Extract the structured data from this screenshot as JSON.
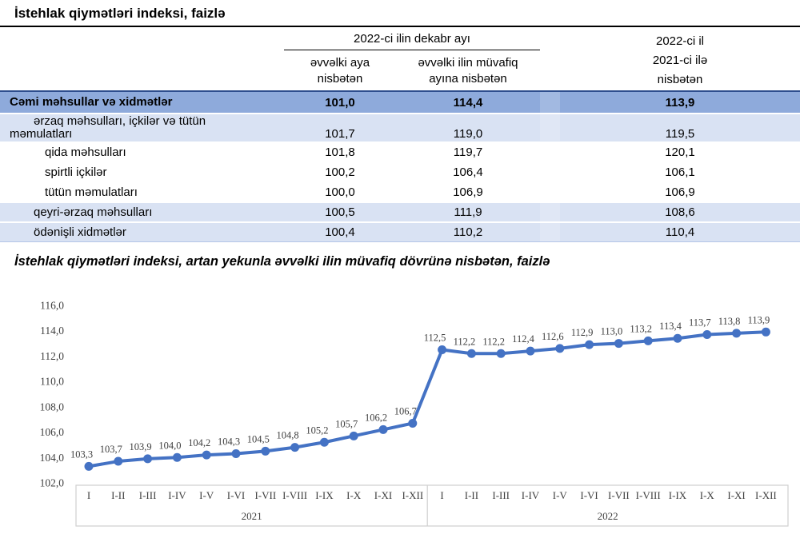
{
  "page": {
    "title": "İstehlak qiymətləri indeksi, faizlə"
  },
  "colors": {
    "table_header_fill": "#8EAADB",
    "table_band_fill": "#D9E2F3",
    "table_top_border": "#2E4E8E",
    "chart_line": "#4472C4",
    "axis_text": "#3f3f3f",
    "axis_box_border": "#cfcfcf"
  },
  "table": {
    "header": {
      "group_top": "2022-ci ilin dekabr ayı",
      "col1_lines": [
        "əvvəlki aya",
        "nisbətən"
      ],
      "col2_lines": [
        "əvvəlki ilin müvafiq",
        "ayına nisbətən"
      ],
      "col3_lines": [
        "2022-ci il",
        "2021-ci ilə",
        "nisbətən"
      ]
    },
    "rows": [
      {
        "lines": [
          "Cəmi məhsullar və xidmətlər"
        ],
        "indents": [
          12
        ],
        "values": [
          "101,0",
          "114,4",
          "113,9"
        ],
        "style": "total"
      },
      {
        "lines": [
          "ərzaq məhsulları, içkilər və tütün",
          "məmulatları"
        ],
        "indents": [
          42,
          12
        ],
        "values": [
          "101,7",
          "119,0",
          "119,5"
        ],
        "style": "band tall"
      },
      {
        "lines": [
          "qida məhsulları"
        ],
        "indents": [
          56
        ],
        "values": [
          "101,8",
          "119,7",
          "120,1"
        ],
        "style": "plain"
      },
      {
        "lines": [
          "spirtli içkilər"
        ],
        "indents": [
          56
        ],
        "values": [
          "100,2",
          "106,4",
          "106,1"
        ],
        "style": "plain"
      },
      {
        "lines": [
          "tütün məmulatları"
        ],
        "indents": [
          56
        ],
        "values": [
          "100,0",
          "106,9",
          "106,9"
        ],
        "style": "plain"
      },
      {
        "lines": [
          "qeyri-ərzaq məhsulları"
        ],
        "indents": [
          42
        ],
        "values": [
          "100,5",
          "111,9",
          "108,6"
        ],
        "style": "band"
      },
      {
        "lines": [
          "ödənişli xidmətlər"
        ],
        "indents": [
          42
        ],
        "values": [
          "100,4",
          "110,2",
          "110,4"
        ],
        "style": "band last"
      }
    ]
  },
  "chart_data": {
    "type": "line",
    "title": "İstehlak qiymətləri indeksi, artan yekunla əvvəlki ilin müvafiq dövrünə nisbətən, faizlə",
    "categories": [
      "I",
      "I-II",
      "I-III",
      "I-IV",
      "I-V",
      "I-VI",
      "I-VII",
      "I-VIII",
      "I-IX",
      "I-X",
      "I-XI",
      "I-XII",
      "I",
      "I-II",
      "I-III",
      "I-IV",
      "I-V",
      "I-VI",
      "I-VII",
      "I-VIII",
      "I-IX",
      "I-X",
      "I-XI",
      "I-XII"
    ],
    "groups": [
      {
        "label": "2021",
        "span": 12
      },
      {
        "label": "2022",
        "span": 12
      }
    ],
    "series": [
      {
        "name": "İstehlak qiymətləri indeksi, artan yekunla",
        "values": [
          103.3,
          103.7,
          103.9,
          104.0,
          104.2,
          104.3,
          104.5,
          104.8,
          105.2,
          105.7,
          106.2,
          106.7,
          112.5,
          112.2,
          112.2,
          112.4,
          112.6,
          112.9,
          113.0,
          113.2,
          113.4,
          113.7,
          113.8,
          113.9
        ]
      }
    ],
    "ylim": [
      102,
      116
    ],
    "ytick_step": 2,
    "decimal_separator": ",",
    "grid": false,
    "legend_position": "none",
    "data_labels": true,
    "line_color": "#4472C4"
  }
}
